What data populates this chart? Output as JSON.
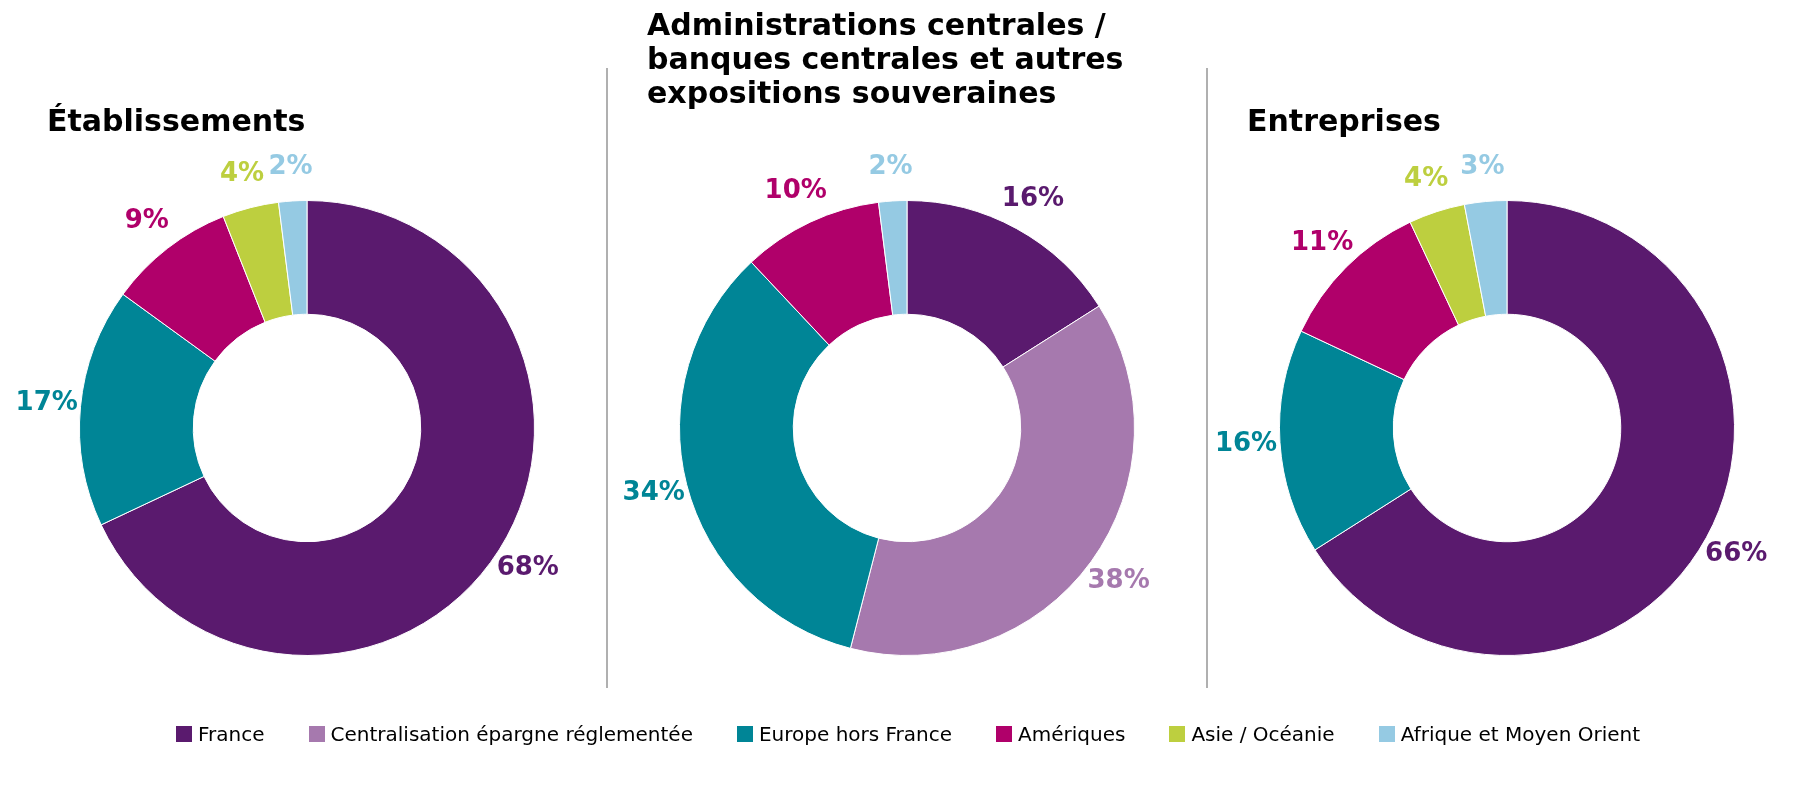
{
  "chart_data": [
    {
      "type": "donut",
      "title": "Établissements",
      "categories": [
        "France",
        "Europe hors France",
        "Amériques",
        "Asie / Océanie",
        "Afrique et Moyen Orient"
      ],
      "values": [
        68,
        17,
        9,
        4,
        2
      ],
      "colors": [
        "#5a1a6e",
        "#008596",
        "#b0006a",
        "#bdcf3f",
        "#95cae3"
      ],
      "value_labels": [
        "68%",
        "17%",
        "9%",
        "4%",
        "2%"
      ],
      "legend": "bottom"
    },
    {
      "type": "donut",
      "title": "Administrations centrales / banques centrales et autres expositions souveraines",
      "categories": [
        null,
        "Centralisation épargne réglementée",
        null,
        null,
        null
      ],
      "values": [
        16,
        38,
        34,
        10,
        2
      ],
      "colors": [
        "#5a1a6e",
        "#a679ae",
        "#008596",
        "#b0006a",
        "#95cae3"
      ],
      "value_labels": [
        "16%",
        "38%",
        "34%",
        "10%",
        "2%"
      ],
      "legend": "bottom"
    },
    {
      "type": "donut",
      "title": "Entreprises",
      "categories": [
        null,
        null,
        null,
        null,
        null
      ],
      "values": [
        66,
        16,
        11,
        4,
        3
      ],
      "colors": [
        "#5a1a6e",
        "#008596",
        "#b0006a",
        "#bdcf3f",
        "#95cae3"
      ],
      "value_labels": [
        "66%",
        "16%",
        "11%",
        "4%",
        "3%"
      ]
    }
  ]
}
